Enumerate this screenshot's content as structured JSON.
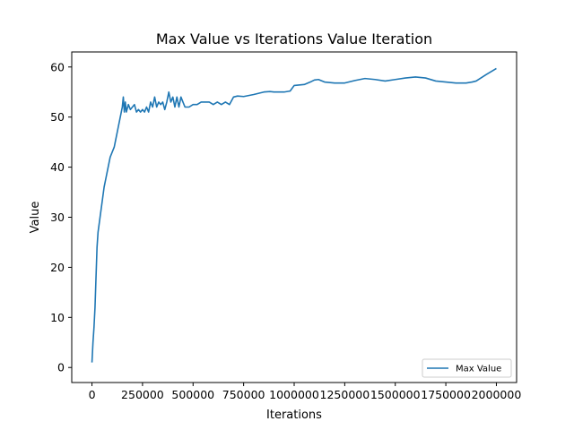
{
  "chart_data": {
    "type": "line",
    "title": "Max Value vs Iterations Value Iteration",
    "xlabel": "Iterations",
    "ylabel": "Value",
    "xlim": [
      -100000,
      2100000
    ],
    "ylim": [
      -3,
      63
    ],
    "xticks": [
      0,
      250000,
      500000,
      750000,
      1000000,
      1250000,
      1500000,
      1750000,
      2000000
    ],
    "xtick_labels": [
      "0",
      "250000",
      "500000",
      "750000",
      "1000000",
      "1250000",
      "1500000",
      "1750000",
      "2000000"
    ],
    "yticks": [
      0,
      10,
      20,
      30,
      40,
      50,
      60
    ],
    "ytick_labels": [
      "0",
      "10",
      "20",
      "30",
      "40",
      "50",
      "60"
    ],
    "grid": false,
    "legend": {
      "position": "lower-right"
    },
    "series": [
      {
        "name": "Max Value",
        "color": "#1f77b4",
        "x": [
          0,
          5000,
          10000,
          15000,
          20000,
          25000,
          30000,
          40000,
          50000,
          60000,
          70000,
          80000,
          90000,
          100000,
          110000,
          120000,
          130000,
          140000,
          150000,
          155000,
          160000,
          165000,
          170000,
          180000,
          190000,
          200000,
          210000,
          220000,
          230000,
          240000,
          250000,
          260000,
          270000,
          280000,
          290000,
          300000,
          310000,
          320000,
          330000,
          340000,
          350000,
          360000,
          370000,
          380000,
          390000,
          400000,
          410000,
          420000,
          430000,
          440000,
          450000,
          460000,
          480000,
          500000,
          520000,
          540000,
          560000,
          580000,
          600000,
          620000,
          640000,
          660000,
          680000,
          700000,
          720000,
          750000,
          800000,
          850000,
          880000,
          900000,
          950000,
          980000,
          1000000,
          1050000,
          1080000,
          1100000,
          1120000,
          1150000,
          1200000,
          1250000,
          1300000,
          1350000,
          1400000,
          1450000,
          1500000,
          1550000,
          1600000,
          1650000,
          1700000,
          1750000,
          1800000,
          1850000,
          1880000,
          1900000,
          1950000,
          2000000
        ],
        "y": [
          1,
          5,
          8,
          12,
          18,
          24,
          27,
          30,
          33,
          36,
          38,
          40,
          42,
          43,
          44,
          46,
          48,
          50,
          52,
          54,
          51,
          53,
          51,
          52.5,
          51.5,
          52,
          52.5,
          51,
          51.5,
          51,
          51.5,
          51,
          52,
          51,
          53,
          52,
          54,
          52,
          53,
          52.5,
          53,
          51.5,
          53,
          55,
          53,
          54,
          52,
          54,
          52,
          54,
          53,
          52,
          52,
          52.5,
          52.5,
          53,
          53,
          53,
          52.5,
          53,
          52.5,
          53,
          52.5,
          54,
          54.2,
          54.1,
          54.5,
          55,
          55.1,
          55,
          55,
          55.2,
          56.3,
          56.5,
          57,
          57.4,
          57.5,
          57,
          56.8,
          56.8,
          57.3,
          57.7,
          57.5,
          57.2,
          57.5,
          57.8,
          58,
          57.8,
          57.2,
          57,
          56.8,
          56.8,
          57,
          57.2,
          58.5,
          59.7
        ]
      }
    ]
  }
}
